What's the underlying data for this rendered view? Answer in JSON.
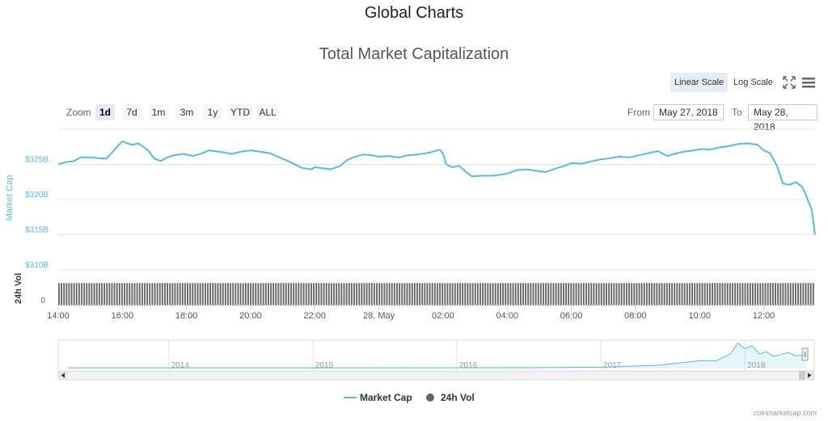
{
  "page": {
    "title": "Global Charts"
  },
  "toolbar": {
    "linear_label": "Linear Scale",
    "log_label": "Log Scale",
    "fullscreen_icon": "fullscreen-icon",
    "menu_icon": "menu-icon"
  },
  "range_selector": {
    "zoom_label": "Zoom",
    "buttons": [
      "1d",
      "7d",
      "1m",
      "3m",
      "1y",
      "YTD",
      "ALL"
    ],
    "selected": "1d",
    "from_label": "From",
    "from_value": "May 27, 2018",
    "to_label": "To",
    "to_value": "May 28, 2018"
  },
  "legend": {
    "market_cap": "Market Cap",
    "volume": "24h Vol"
  },
  "credits": "coinmarketcap.com",
  "colors": {
    "market_cap": "#5bb7e5",
    "volume": "#666666",
    "grid": "#e6e6e6",
    "axis_label": "#5bb7e5"
  },
  "chart_data": {
    "type": "line",
    "title": "Total Market Capitalization",
    "y_axis_label": "Market Cap",
    "y_ticks": [
      "$325B",
      "$320B",
      "$315B",
      "$310B"
    ],
    "y_tick_values": [
      325,
      320,
      315,
      310
    ],
    "ylim": [
      310,
      330
    ],
    "volume_axis_label": "24h Vol",
    "volume_tick": "0",
    "x_ticks": [
      "14:00",
      "16:00",
      "18:00",
      "20:00",
      "22:00",
      "28. May",
      "02:00",
      "04:00",
      "06:00",
      "08:00",
      "10:00",
      "12:00"
    ],
    "x_tick_hours": [
      14,
      16,
      18,
      20,
      22,
      24,
      26,
      28,
      30,
      32,
      34,
      36
    ],
    "xlim_hours": [
      14,
      37.6
    ],
    "series": [
      {
        "name": "Market Cap",
        "unit": "$B",
        "x_hours": [
          14.0,
          14.2,
          14.5,
          14.7,
          15.0,
          15.5,
          16.0,
          16.1,
          16.3,
          16.5,
          16.8,
          17.0,
          17.2,
          17.4,
          17.6,
          17.9,
          18.2,
          18.5,
          18.7,
          19.0,
          19.2,
          19.4,
          19.8,
          20.0,
          20.3,
          20.6,
          20.8,
          21.0,
          21.3,
          21.6,
          21.9,
          22.0,
          22.2,
          22.5,
          22.8,
          23.0,
          23.2,
          23.5,
          23.8,
          24.0,
          24.3,
          24.6,
          24.9,
          25.2,
          25.6,
          25.9,
          26.0,
          26.1,
          26.3,
          26.5,
          26.7,
          26.9,
          27.2,
          27.6,
          28.0,
          28.3,
          28.6,
          28.9,
          29.2,
          29.5,
          29.8,
          30.0,
          30.3,
          30.6,
          30.9,
          31.2,
          31.5,
          31.8,
          32.1,
          32.4,
          32.7,
          33.0,
          33.2,
          33.5,
          33.8,
          34.1,
          34.3,
          34.6,
          34.9,
          35.2,
          35.5,
          35.8,
          36.0,
          36.2,
          36.4,
          36.6,
          36.8,
          37.0,
          37.2,
          37.3,
          37.5,
          37.6
        ],
        "values": [
          325.0,
          325.3,
          325.5,
          326.0,
          326.0,
          325.8,
          328.3,
          328.1,
          327.8,
          328.0,
          327.0,
          325.8,
          325.5,
          326.0,
          326.3,
          326.5,
          326.2,
          326.6,
          327.0,
          326.8,
          326.7,
          326.5,
          326.9,
          327.0,
          326.8,
          326.6,
          326.2,
          325.8,
          325.2,
          324.5,
          324.3,
          324.6,
          324.5,
          324.3,
          324.8,
          325.6,
          326.0,
          326.4,
          326.3,
          326.1,
          326.2,
          326.0,
          326.3,
          326.4,
          326.7,
          327.1,
          326.5,
          325.0,
          324.6,
          324.8,
          324.0,
          323.3,
          323.4,
          323.4,
          323.7,
          324.2,
          324.3,
          324.1,
          323.9,
          324.4,
          324.8,
          325.2,
          325.1,
          325.4,
          325.7,
          325.9,
          326.1,
          326.0,
          326.3,
          326.6,
          326.9,
          326.2,
          326.5,
          326.8,
          327.0,
          327.2,
          327.1,
          327.4,
          327.6,
          327.9,
          328.0,
          327.8,
          327.0,
          326.6,
          324.9,
          322.3,
          322.1,
          322.5,
          321.8,
          320.8,
          318.5,
          315.0
        ]
      },
      {
        "name": "24h Vol",
        "constant_relative": 0.77,
        "bar_count": 300
      }
    ],
    "navigator": {
      "year_labels": [
        "2014",
        "2015",
        "2016",
        "2017",
        "2018"
      ],
      "year_positions": [
        2014,
        2015,
        2016,
        2017,
        2018
      ],
      "range": [
        2013.3,
        2018.42
      ],
      "points": [
        [
          2013.3,
          0.02
        ],
        [
          2015.0,
          0.02
        ],
        [
          2016.5,
          0.03
        ],
        [
          2017.0,
          0.05
        ],
        [
          2017.4,
          0.12
        ],
        [
          2017.7,
          0.3
        ],
        [
          2017.8,
          0.28
        ],
        [
          2017.9,
          0.55
        ],
        [
          2017.95,
          0.95
        ],
        [
          2018.0,
          0.75
        ],
        [
          2018.05,
          0.85
        ],
        [
          2018.1,
          0.55
        ],
        [
          2018.15,
          0.62
        ],
        [
          2018.2,
          0.45
        ],
        [
          2018.25,
          0.52
        ],
        [
          2018.3,
          0.6
        ],
        [
          2018.35,
          0.48
        ],
        [
          2018.42,
          0.5
        ]
      ]
    }
  }
}
